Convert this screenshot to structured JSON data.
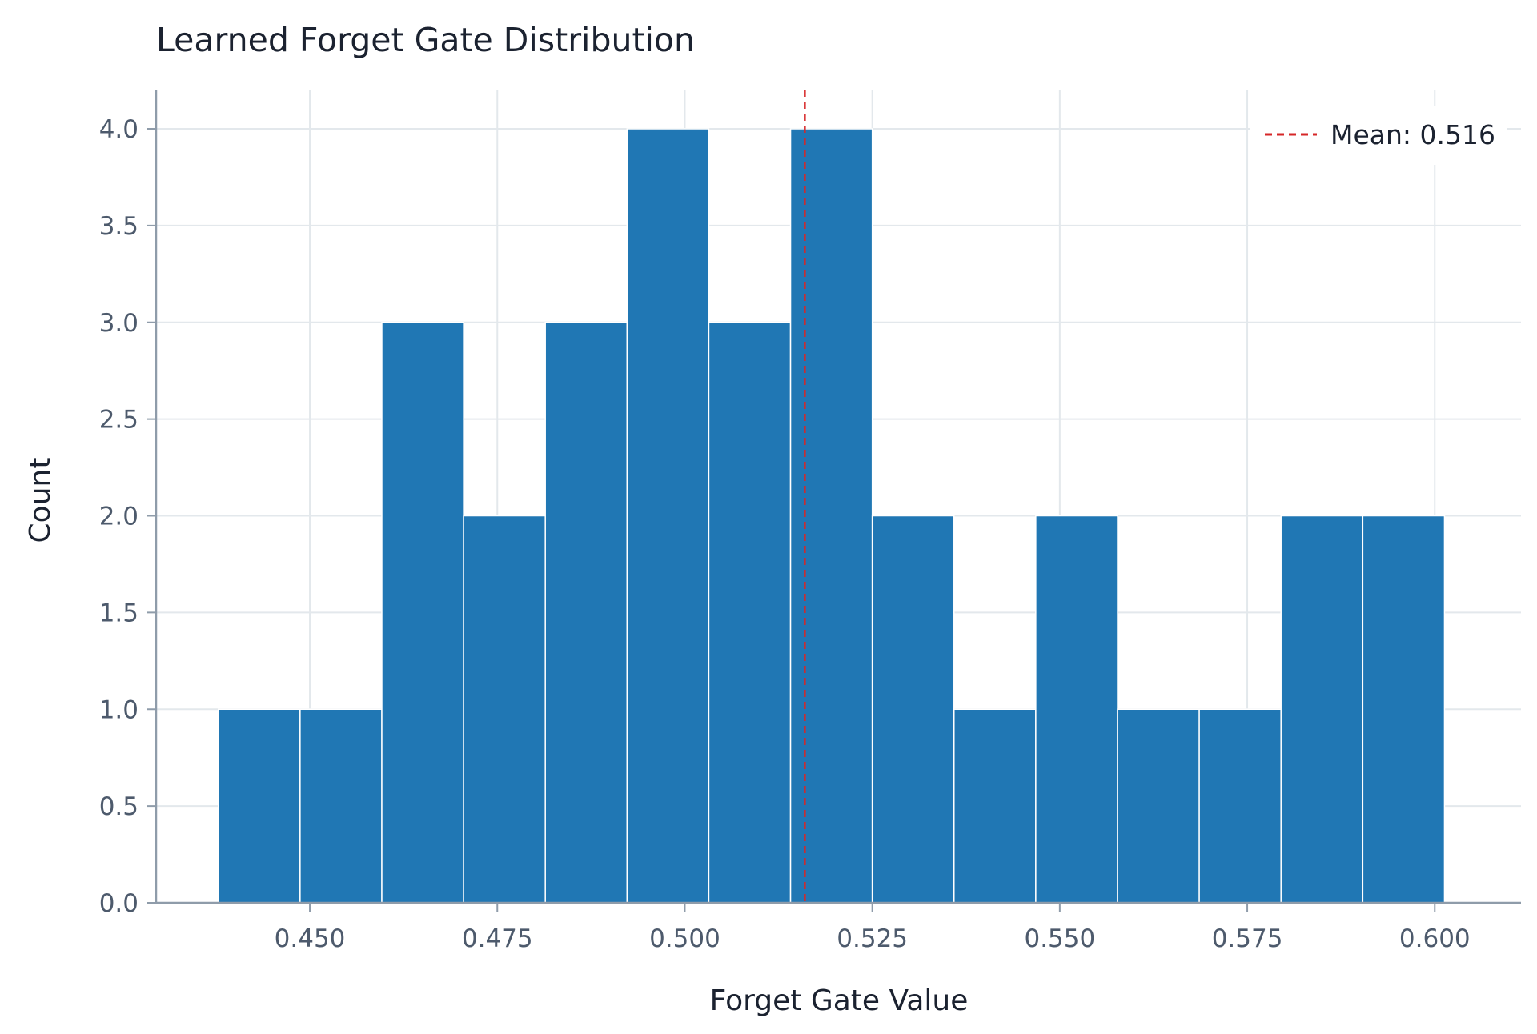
{
  "chart_data": {
    "type": "bar",
    "subtype": "histogram",
    "title": "Learned Forget Gate Distribution",
    "xlabel": "Forget Gate Value",
    "ylabel": "Count",
    "xlim": [
      0.4295,
      0.6115
    ],
    "ylim": [
      0,
      4.2
    ],
    "x_ticks": [
      0.45,
      0.475,
      0.5,
      0.525,
      0.55,
      0.575,
      0.6
    ],
    "x_tick_labels": [
      "0.450",
      "0.475",
      "0.500",
      "0.525",
      "0.550",
      "0.575",
      "0.600"
    ],
    "y_ticks": [
      0,
      0.5,
      1,
      1.5,
      2,
      2.5,
      3,
      3.5,
      4
    ],
    "y_tick_labels": [
      "0.0",
      "0.5",
      "1.0",
      "1.5",
      "2.0",
      "2.5",
      "3.0",
      "3.5",
      "4.0"
    ],
    "bin_edges": [
      0.4378,
      0.4487,
      0.4596,
      0.4705,
      0.4814,
      0.4923,
      0.5032,
      0.5141,
      0.525,
      0.5359,
      0.5468,
      0.5577,
      0.5686,
      0.5795,
      0.5904,
      0.6013
    ],
    "counts": [
      1,
      1,
      3,
      2,
      3,
      4,
      3,
      4,
      2,
      1,
      2,
      1,
      1,
      2,
      2
    ],
    "bar_color": "#2077b4",
    "mean_line": {
      "value": 0.516,
      "label": "Mean: 0.516",
      "color": "#d62728",
      "style": "dashed"
    },
    "grid": true,
    "legend_position": "top-right",
    "colors": {
      "grid": "#e3e8ec",
      "axis": "#8f9caa",
      "tick_text": "#4d5a6c",
      "text": "#1b2230"
    }
  }
}
